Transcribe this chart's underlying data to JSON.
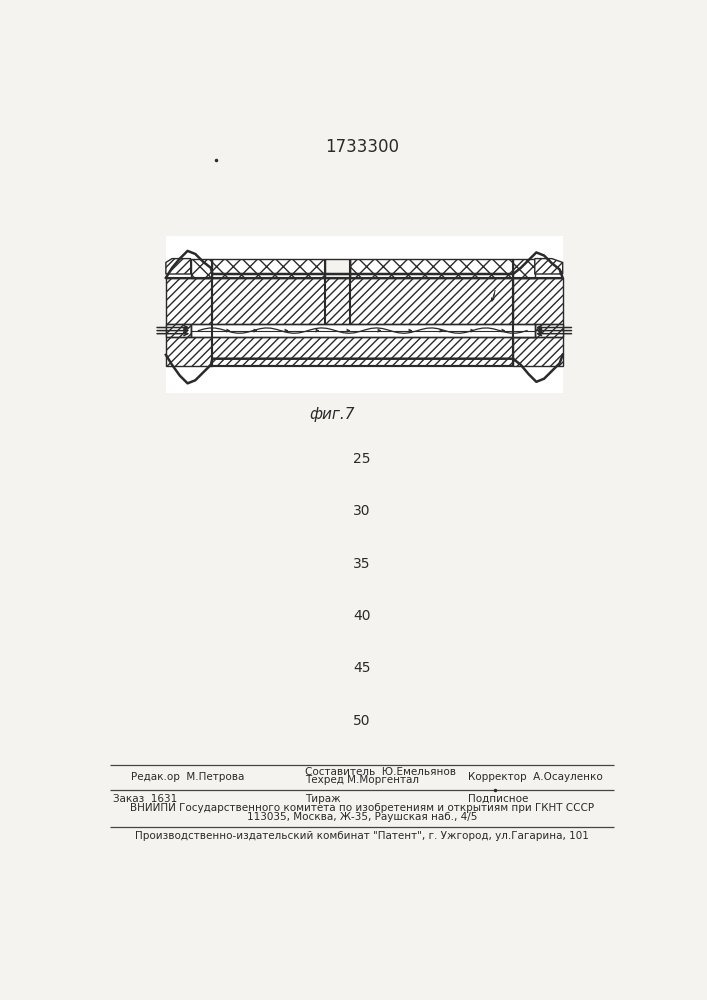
{
  "title_number": "1733300",
  "fig_label": "фиг.7",
  "page_numbers": [
    "25",
    "30",
    "35",
    "40",
    "45",
    "50"
  ],
  "footer_line1_left": "Редак.ор  М.Петрова",
  "footer_line1_center_top": "Составитель  Ю.Емельянов",
  "footer_line1_center_bot": "Техред М.Моргентал",
  "footer_line1_right": "Корректор  А.Осауленко",
  "footer_line2_col1": "Заказ  1631",
  "footer_line2_col2": "Тираж",
  "footer_line2_col3": "Подписное",
  "footer_line3": "ВНИИПИ Государственного комитета по изобретениям и открытиям при ГКНТ СССР",
  "footer_line4": "113035, Москва, Ж-35, Раушская наб., 4/5",
  "footer_line5": "Производственно-издательский комбинат \"Патент\", г. Ужгород, ул.Гагарина, 101",
  "bg_color": "#f5f3ef",
  "line_color": "#2a2a2a"
}
